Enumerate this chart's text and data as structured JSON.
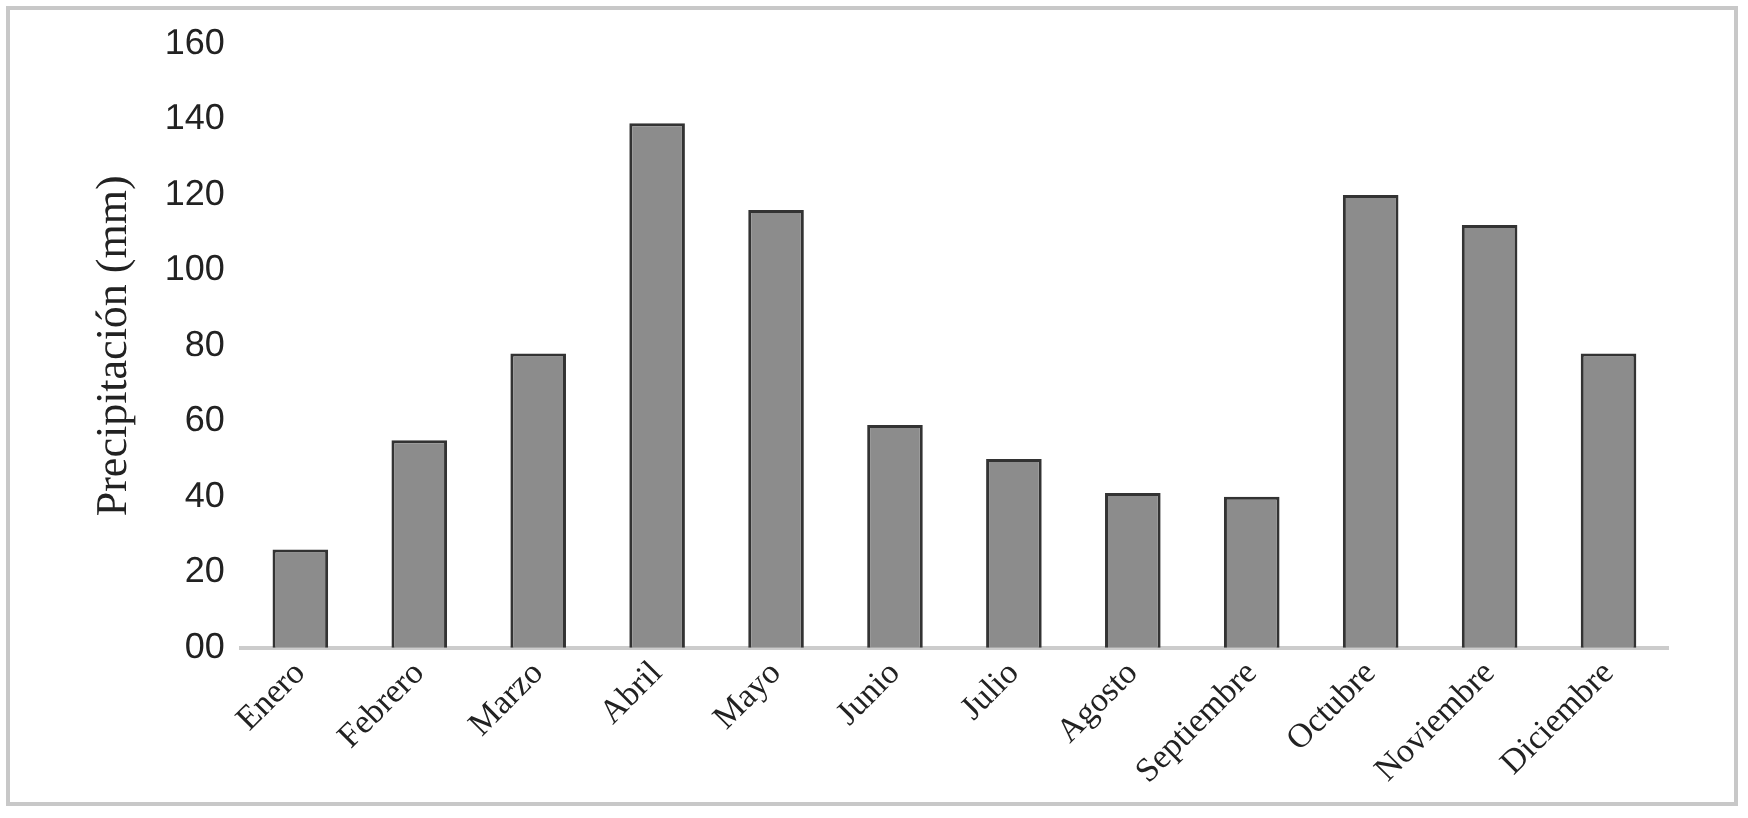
{
  "chart_data": {
    "type": "bar",
    "ylabel": "Precipitación (mm)",
    "categories": [
      "Enero",
      "Febrero",
      "Marzo",
      "Abril",
      "Mayo",
      "Junio",
      "Julio",
      "Agosto",
      "Septiembre",
      "Octubre",
      "Noviembre",
      "Diciembre"
    ],
    "values": [
      26,
      55,
      78,
      139,
      116,
      59,
      50,
      41,
      40,
      120,
      112,
      78
    ],
    "color": "#8c8c8c",
    "ylim": [
      0,
      160
    ],
    "yticks": [
      {
        "value": 0,
        "label": "00"
      },
      20,
      40,
      60,
      80,
      100,
      120,
      140,
      160
    ],
    "grid": false,
    "legend": false
  }
}
